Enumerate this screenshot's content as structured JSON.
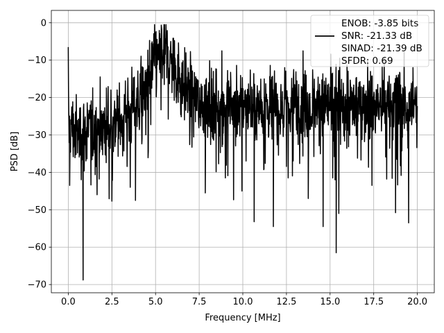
{
  "chart_data": {
    "type": "line",
    "title": "",
    "xlabel": "Frequency [MHz]",
    "ylabel": "PSD [dB]",
    "xlim": [
      -0.97,
      20.97
    ],
    "ylim": [
      -72.2,
      3.3
    ],
    "xticks": [
      0.0,
      2.5,
      5.0,
      7.5,
      10.0,
      12.5,
      15.0,
      17.5,
      20.0
    ],
    "xtick_labels": [
      "0.0",
      "2.5",
      "5.0",
      "7.5",
      "10.0",
      "12.5",
      "15.0",
      "17.5",
      "20.0"
    ],
    "yticks": [
      0,
      -10,
      -20,
      -30,
      -40,
      -50,
      -60,
      -70
    ],
    "ytick_labels": [
      "0",
      "−10",
      "−20",
      "−30",
      "−40",
      "−50",
      "−60",
      "−70"
    ],
    "grid": true,
    "legend_position": "top-right",
    "line_color": "#000000",
    "legend": [
      {
        "text": "ENOB: -3.85 bits",
        "handle": false
      },
      {
        "text": "SNR: -21.33 dB",
        "handle": true
      },
      {
        "text": "SINAD: -21.39 dB",
        "handle": false
      },
      {
        "text": "SFDR: 0.69",
        "handle": false
      }
    ],
    "series": [
      {
        "envelope": {
          "freq_mhz": [
            0.0,
            0.5,
            1.0,
            1.5,
            2.0,
            2.5,
            3.0,
            3.5,
            4.0,
            4.5,
            5.0,
            5.5,
            6.0,
            6.5,
            7.0,
            7.5,
            8.0,
            8.5,
            9.0,
            9.5,
            10.0,
            10.5,
            11.0,
            11.5,
            12.0,
            12.5,
            13.0,
            13.5,
            14.0,
            14.5,
            15.0,
            15.5,
            16.0,
            16.5,
            17.0,
            17.5,
            18.0,
            18.5,
            19.0,
            19.5,
            20.0
          ],
          "psd_db": [
            -27,
            -30,
            -29,
            -28,
            -28,
            -27,
            -25,
            -24,
            -21,
            -16,
            -10,
            -8,
            -11,
            -16,
            -19,
            -21,
            -22,
            -22,
            -22,
            -22,
            -22,
            -22,
            -22,
            -22,
            -22,
            -22,
            -22,
            -22,
            -22,
            -22,
            -22,
            -22,
            -22,
            -22,
            -22,
            -22,
            -22,
            -22,
            -22,
            -22,
            -23
          ]
        },
        "spikes": [
          {
            "freq_mhz": 0.0,
            "psd_db": -6.5
          },
          {
            "freq_mhz": 0.08,
            "psd_db": -43.5
          },
          {
            "freq_mhz": 0.85,
            "psd_db": -68.8
          },
          {
            "freq_mhz": 1.65,
            "psd_db": -46
          },
          {
            "freq_mhz": 3.55,
            "psd_db": -44
          },
          {
            "freq_mhz": 3.85,
            "psd_db": -47.5
          },
          {
            "freq_mhz": 5.35,
            "psd_db": -1.8
          },
          {
            "freq_mhz": 5.6,
            "psd_db": -0.5
          },
          {
            "freq_mhz": 7.85,
            "psd_db": -45.5
          },
          {
            "freq_mhz": 8.8,
            "psd_db": -7.5
          },
          {
            "freq_mhz": 9.0,
            "psd_db": -41.5
          },
          {
            "freq_mhz": 9.95,
            "psd_db": -45
          },
          {
            "freq_mhz": 10.65,
            "psd_db": -53.2
          },
          {
            "freq_mhz": 11.75,
            "psd_db": -54.5
          },
          {
            "freq_mhz": 12.6,
            "psd_db": -41.5
          },
          {
            "freq_mhz": 13.45,
            "psd_db": -7.5
          },
          {
            "freq_mhz": 13.75,
            "psd_db": -47
          },
          {
            "freq_mhz": 14.6,
            "psd_db": -54.5
          },
          {
            "freq_mhz": 15.15,
            "psd_db": -41.5
          },
          {
            "freq_mhz": 15.35,
            "psd_db": -61.5
          },
          {
            "freq_mhz": 15.5,
            "psd_db": -51
          },
          {
            "freq_mhz": 15.55,
            "psd_db": -9.5
          },
          {
            "freq_mhz": 17.15,
            "psd_db": -10
          },
          {
            "freq_mhz": 17.4,
            "psd_db": -43.5
          },
          {
            "freq_mhz": 18.1,
            "psd_db": -9.5
          },
          {
            "freq_mhz": 18.75,
            "psd_db": -50.8
          },
          {
            "freq_mhz": 19.0,
            "psd_db": -13.5
          },
          {
            "freq_mhz": 19.5,
            "psd_db": -53.5
          },
          {
            "freq_mhz": 19.75,
            "psd_db": -12
          }
        ],
        "noise_spread_db": 9
      }
    ]
  }
}
